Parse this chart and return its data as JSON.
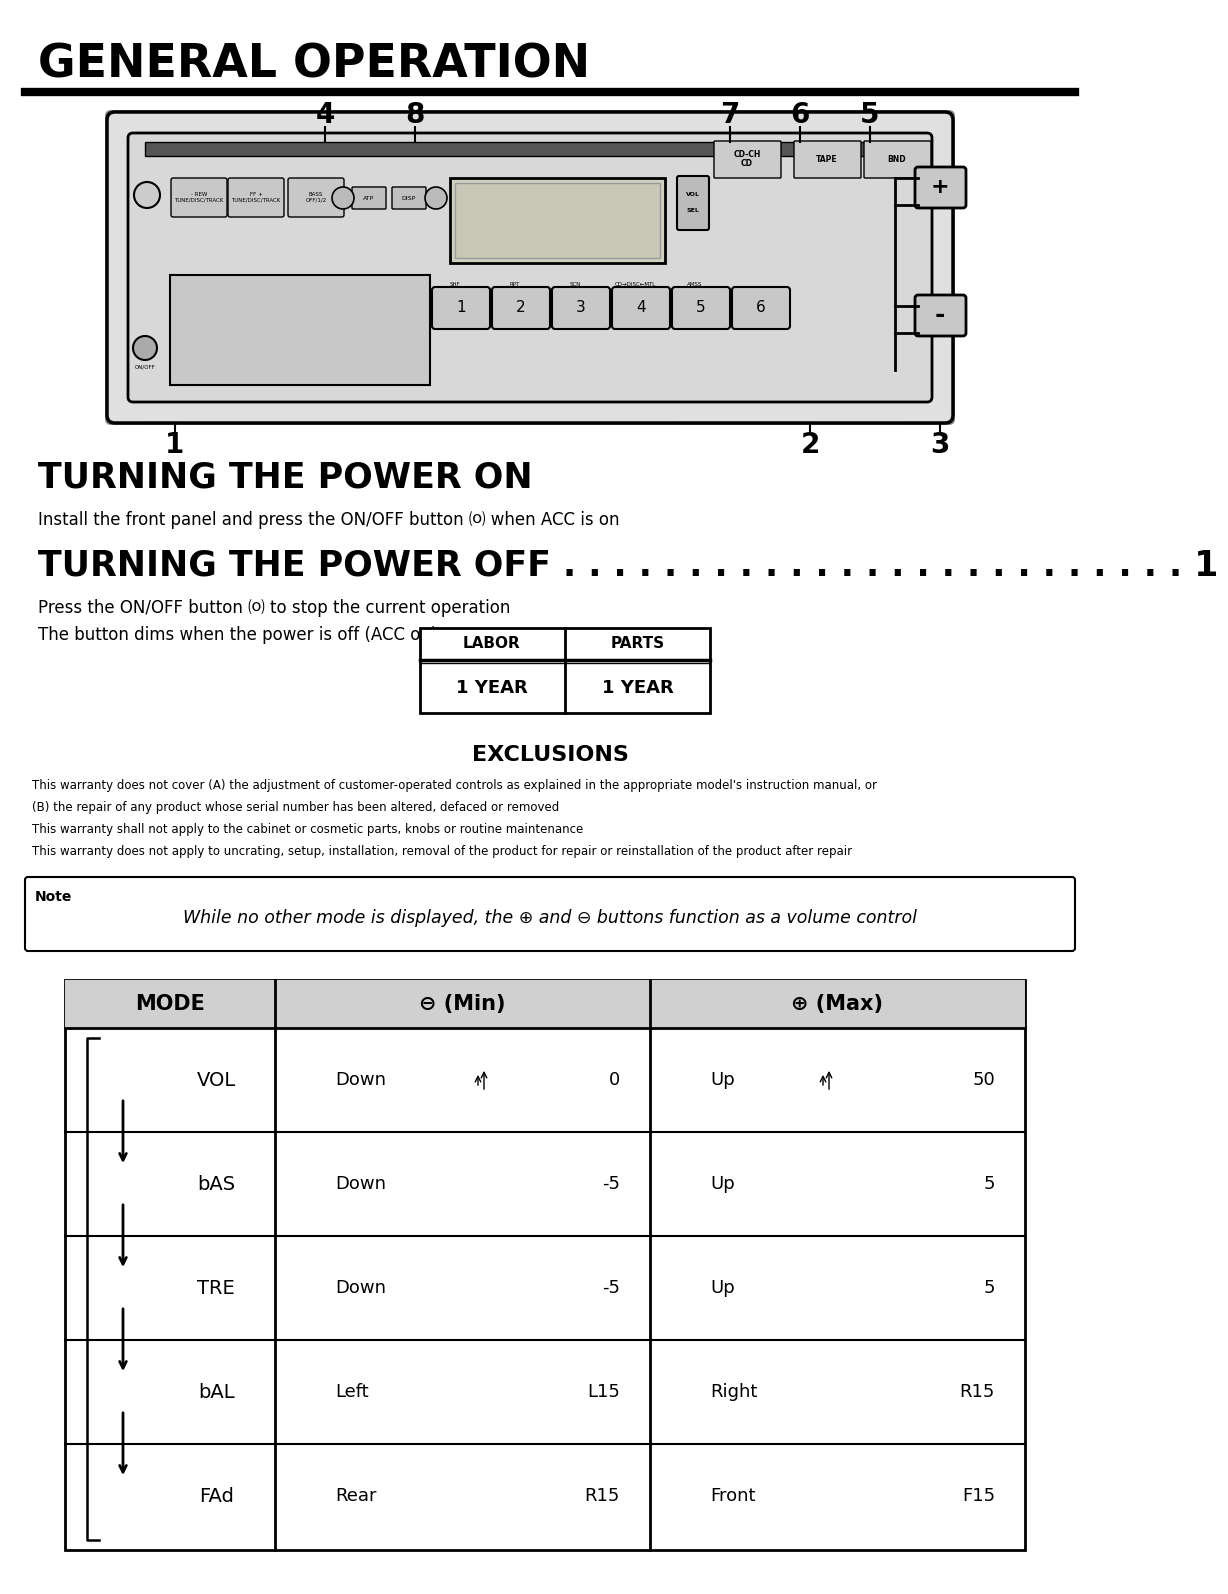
{
  "title": "GENERAL OPERATION",
  "bg_color": "#ffffff",
  "title_color": "#000000",
  "section1_title": "TURNING THE POWER ON",
  "section1_text": "Install the front panel and press the ON/OFF button ⒪ when ACC is on",
  "section2_title": "TURNING THE POWER OFF . . . . . . . . . . . . . . . . . . . . . . . . . 1",
  "section2_text1": "Press the ON/OFF button ⒪ to stop the current operation",
  "section2_text2": "The button dims when the power is off (ACC on)",
  "warranty_table_headers": [
    "LABOR",
    "PARTS"
  ],
  "warranty_table_values": [
    "1 YEAR",
    "1 YEAR"
  ],
  "exclusions_title": "EXCLUSIONS",
  "exclusions_text": [
    "This warranty does not cover (A) the adjustment of customer-operated controls as explained in the appropriate model's instruction manual, or",
    "(B) the repair of any product whose serial number has been altered, defaced or removed",
    "This warranty shall not apply to the cabinet or cosmetic parts, knobs or routine maintenance",
    "This warranty does not apply to uncrating, setup, installation, removal of the product for repair or reinstallation of the product after repair"
  ],
  "note_label": "Note",
  "note_text": "While no other mode is displayed, the ⊕ and ⊖ buttons function as a volume control",
  "table_title_mode": "MODE",
  "table_title_min": "⊖ (Min)",
  "table_title_max": "⊕ (Max)",
  "table_rows": [
    {
      "mode": "VOL",
      "min_label": "Down",
      "min_val": "0",
      "max_label": "Up",
      "max_val": "50"
    },
    {
      "mode": "bAS",
      "min_label": "Down",
      "min_val": "-5",
      "max_label": "Up",
      "max_val": "5"
    },
    {
      "mode": "TRE",
      "min_label": "Down",
      "min_val": "-5",
      "max_label": "Up",
      "max_val": "5"
    },
    {
      "mode": "bAL",
      "min_label": "Left",
      "min_val": "L15",
      "max_label": "Right",
      "max_val": "R15"
    },
    {
      "mode": "FAd",
      "min_label": "Rear",
      "min_val": "R15",
      "max_label": "Front",
      "max_val": "F15"
    }
  ]
}
